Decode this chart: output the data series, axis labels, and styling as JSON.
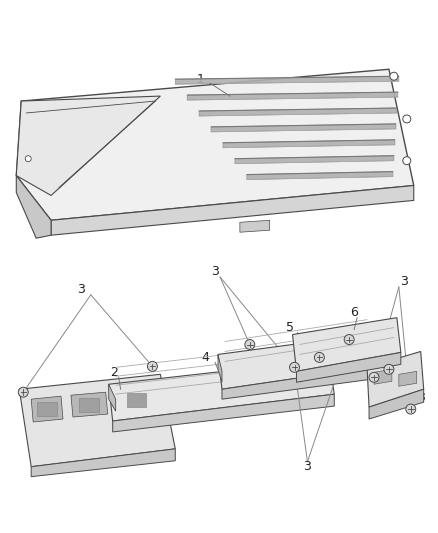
{
  "bg_color": "#ffffff",
  "lc": "#4a4a4a",
  "lc_light": "#888888",
  "lc_dark": "#222222",
  "fill_top": "#f2f2f2",
  "fill_side": "#d8d8d8",
  "fill_front": "#e0e0e0",
  "fill_part": "#ebebeb",
  "fill_part_dark": "#d0d0d0",
  "font_size": 8,
  "label_color": "#222222",
  "screw_fill": "#d0d0d0"
}
